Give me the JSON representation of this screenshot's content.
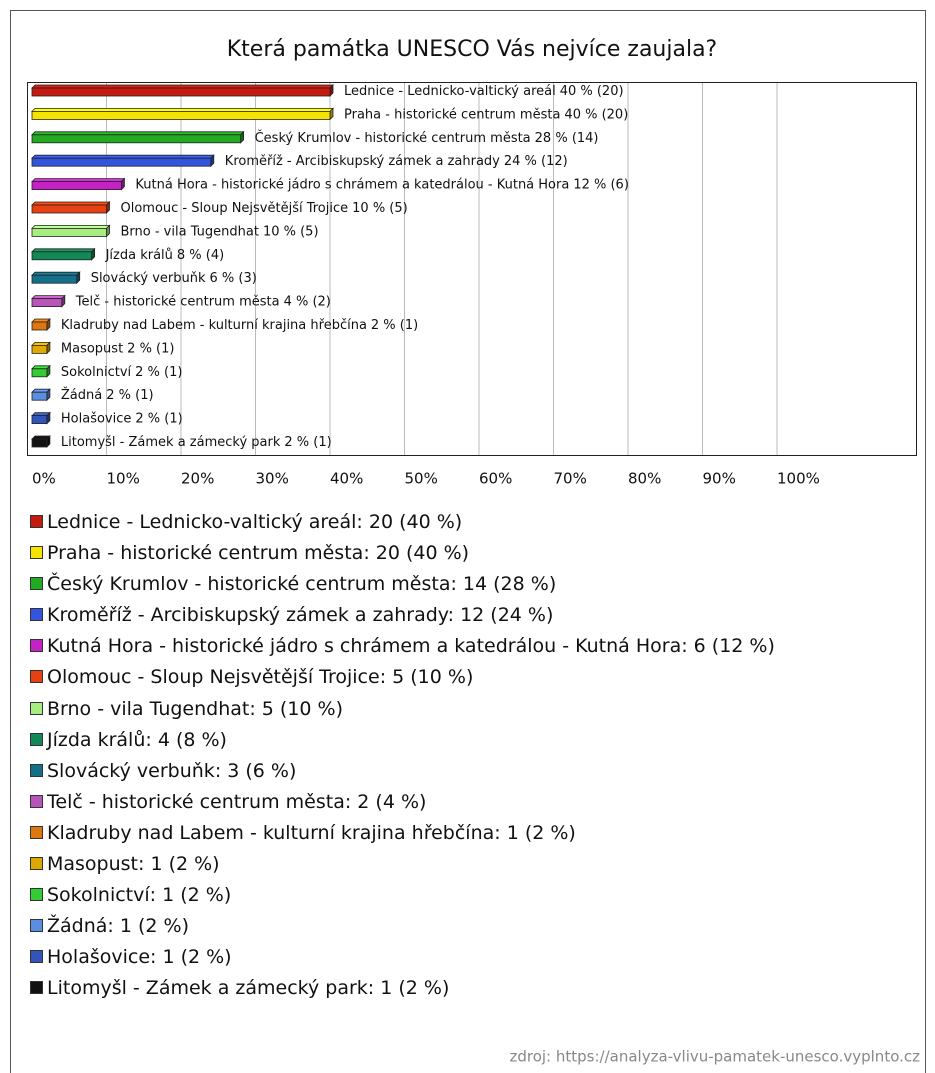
{
  "chart_data": {
    "type": "bar",
    "orientation": "horizontal",
    "title": "Která památka UNESCO Vás nejvíce zaujala?",
    "categories": [
      "Lednice - Lednicko-valtický areál",
      "Praha - historické centrum města",
      "Český Krumlov - historické centrum města",
      "Kroměříž - Arcibiskupský zámek a zahrady",
      "Kutná Hora - historické jádro s chrámem a katedrálou - Kutná Hora",
      "Olomouc - Sloup Nejsvětější Trojice",
      "Brno - vila Tugendhat",
      "Jízda králů",
      "Slovácký verbuňk",
      "Telč - historické centrum města",
      "Kladruby nad Labem - kulturní krajina hřebčína",
      "Masopust",
      "Sokolnictví",
      "Žádná",
      "Holašovice",
      "Litomyšl - Zámek a zámecký park"
    ],
    "values": [
      40,
      40,
      28,
      24,
      12,
      10,
      10,
      8,
      6,
      4,
      2,
      2,
      2,
      2,
      2,
      2
    ],
    "value_labels": [
      "40 % (20)",
      "40 % (20)",
      "28 % (14)",
      "24 % (12)",
      "12 % (6)",
      "10 % (5)",
      "10 % (5)",
      "8 % (4)",
      "6 % (3)",
      "4 % (2)",
      "2 % (1)",
      "2 % (1)",
      "2 % (1)",
      "2 % (1)",
      "2 % (1)",
      "2 % (1)"
    ],
    "legend_labels": [
      ": 20 (40 %)",
      ": 20 (40 %)",
      ": 14 (28 %)",
      ": 12 (24 %)",
      ": 6 (12 %)",
      ": 5 (10 %)",
      ": 5 (10 %)",
      ": 4 (8 %)",
      ": 3 (6 %)",
      ": 2 (4 %)",
      ": 1 (2 %)",
      ": 1 (2 %)",
      ": 1 (2 %)",
      ": 1 (2 %)",
      ": 1 (2 %)",
      ": 1 (2 %)"
    ],
    "colors": [
      "#c41a10",
      "#f5e400",
      "#22aa22",
      "#3355dd",
      "#c422c4",
      "#e84010",
      "#a6ee80",
      "#118855",
      "#14708a",
      "#b855b8",
      "#dd7710",
      "#dda800",
      "#33cc33",
      "#5a8ee0",
      "#3355bb",
      "#111111"
    ],
    "xlim": [
      0,
      100
    ],
    "xticks": [
      {
        "value": 0,
        "label": "0%"
      },
      {
        "value": 10,
        "label": "10%"
      },
      {
        "value": 20,
        "label": "20%"
      },
      {
        "value": 30,
        "label": "30%"
      },
      {
        "value": 40,
        "label": "40%"
      },
      {
        "value": 50,
        "label": "50%"
      },
      {
        "value": 60,
        "label": "60%"
      },
      {
        "value": 70,
        "label": "70%"
      },
      {
        "value": 80,
        "label": "80%"
      },
      {
        "value": 90,
        "label": "90%"
      },
      {
        "value": 100,
        "label": "100%"
      }
    ],
    "grid": true,
    "source": "zdroj: https://analyza-vlivu-pamatek-unesco.vyplnto.cz"
  }
}
